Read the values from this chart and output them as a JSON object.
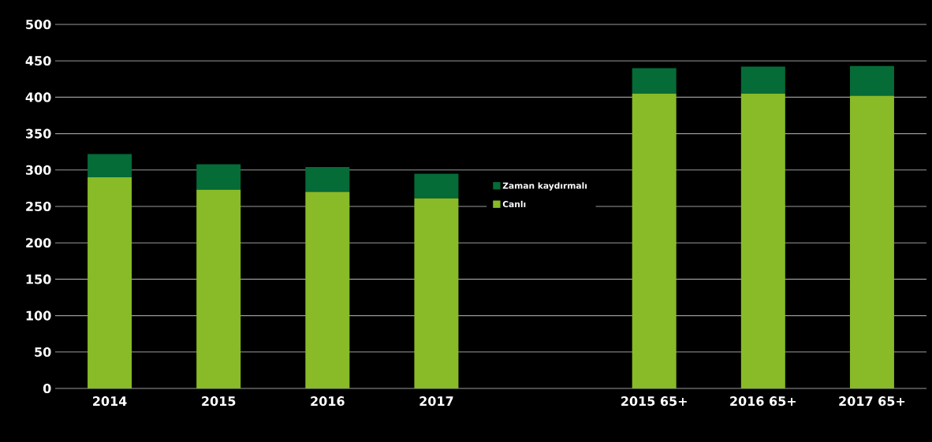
{
  "chart_data": {
    "type": "bar",
    "stacked": true,
    "categories": [
      "2014",
      "2015",
      "2016",
      "2017",
      null,
      "2015 65+",
      "2016 65+",
      "2017 65+"
    ],
    "series": [
      {
        "name": "Canlı",
        "color": "#88bb27",
        "values": [
          290,
          273,
          270,
          261,
          null,
          405,
          405,
          402
        ]
      },
      {
        "name": "Zaman kaydırmalı",
        "color": "#056b37",
        "values": [
          32,
          35,
          34,
          34,
          null,
          35,
          37,
          41
        ]
      }
    ],
    "ylim": [
      0,
      500
    ],
    "yticks": [
      0,
      50,
      100,
      150,
      200,
      250,
      300,
      350,
      400,
      450,
      500
    ],
    "grid": "y",
    "legend": "center"
  }
}
